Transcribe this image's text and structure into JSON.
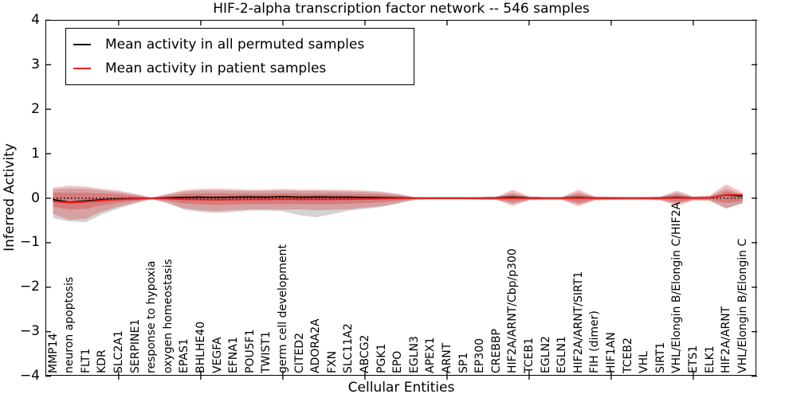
{
  "figure": {
    "title": "HIF-2-alpha transcription factor network -- 546 samples"
  },
  "legend": {
    "items": [
      {
        "label": "Mean activity in all permuted samples",
        "color": "#000000"
      },
      {
        "label": "Mean activity in patient samples",
        "color": "#e82020"
      }
    ]
  },
  "axes": {
    "xlabel": "Cellular Entities",
    "ylabel": "Inferred Activity",
    "ytick_labels": [
      "4",
      "3",
      "2",
      "1",
      "0",
      "−1",
      "−2",
      "−3",
      "−4"
    ]
  },
  "chart_data": {
    "type": "line",
    "title": "HIF-2-alpha transcription factor network -- 546 samples",
    "xlabel": "Cellular Entities",
    "ylabel": "Inferred Activity",
    "ylim": [
      -4,
      4
    ],
    "yticks": [
      4,
      3,
      2,
      1,
      0,
      -1,
      -2,
      -3,
      -4
    ],
    "grid": false,
    "legend_position": "upper left",
    "categories": [
      "MMP14",
      "neuron apoptosis",
      "FLT1",
      "KDR",
      "SLC2A1",
      "SERPINE1",
      "response to hypoxia",
      "oxygen homeostasis",
      "EPAS1",
      "BHLHE40",
      "VEGFA",
      "EFNA1",
      "POU5F1",
      "TWIST1",
      "germ cell development",
      "CITED2",
      "ADORA2A",
      "FXN",
      "SLC11A2",
      "ABCG2",
      "PGK1",
      "EPO",
      "EGLN3",
      "APEX1",
      "ARNT",
      "SP1",
      "EP300",
      "CREBBP",
      "HIF2A/ARNT/Cbp/p300",
      "TCEB1",
      "EGLN2",
      "EGLN1",
      "HIF2A/ARNT/SIRT1",
      "FIH (dimer)",
      "HIF1AN",
      "TCEB2",
      "VHL",
      "SIRT1",
      "VHL/Elongin B/Elongin C/HIF2A",
      "ETS1",
      "ELK1",
      "HIF2A/ARNT",
      "VHL/Elongin B/Elongin C"
    ],
    "x_major_tick_indices": [
      4,
      9,
      14,
      19,
      24,
      29,
      34,
      39
    ],
    "zero_line": {
      "y": 0,
      "style": "dotted",
      "color": "#000000"
    },
    "series": [
      {
        "name": "Mean activity in all permuted samples",
        "color": "#000000",
        "width": 1.6,
        "values": [
          -0.03,
          -0.09,
          -0.06,
          -0.03,
          -0.015,
          -0.005,
          0,
          0.01,
          0.02,
          0.025,
          0.02,
          0.025,
          0.03,
          0.025,
          0.035,
          0.025,
          0.03,
          0.025,
          0.025,
          0.02,
          0.015,
          0.01,
          0.005,
          0.005,
          0.005,
          0.005,
          0.005,
          0.01,
          0.025,
          0.01,
          0.005,
          0.005,
          0.02,
          0.005,
          0.005,
          0.005,
          0.005,
          0.005,
          0.02,
          0.005,
          0.01,
          0.07,
          0.045
        ]
      },
      {
        "name": "Mean activity in patient samples",
        "color": "#e82020",
        "width": 2,
        "values": [
          -0.07,
          -0.1,
          -0.08,
          -0.05,
          -0.03,
          -0.015,
          -0.005,
          -0.01,
          -0.025,
          -0.03,
          -0.035,
          -0.03,
          -0.025,
          -0.025,
          -0.02,
          -0.025,
          -0.025,
          -0.025,
          -0.02,
          -0.015,
          -0.01,
          -0.005,
          0,
          0,
          0,
          0,
          0,
          0,
          0.005,
          0,
          0,
          0,
          0.005,
          0,
          0,
          0,
          0,
          0,
          0.005,
          0.005,
          0.01,
          0.075,
          0.075
        ]
      }
    ],
    "bands": [
      {
        "name": "permuted-samples-std-band",
        "color": "rgba(130,130,130,0.35)",
        "upper": [
          0.2,
          0.22,
          0.21,
          0.17,
          0.13,
          0.08,
          0.012,
          0.08,
          0.15,
          0.17,
          0.17,
          0.165,
          0.16,
          0.16,
          0.17,
          0.16,
          0.16,
          0.155,
          0.15,
          0.14,
          0.12,
          0.08,
          0.025,
          0.02,
          0.02,
          0.02,
          0.022,
          0.025,
          0.12,
          0.03,
          0.022,
          0.022,
          0.13,
          0.03,
          0.025,
          0.022,
          0.022,
          0.03,
          0.12,
          0.03,
          0.045,
          0.22,
          0.09
        ],
        "lower": [
          -0.45,
          -0.52,
          -0.54,
          -0.36,
          -0.23,
          -0.12,
          -0.02,
          -0.12,
          -0.26,
          -0.31,
          -0.33,
          -0.31,
          -0.28,
          -0.28,
          -0.29,
          -0.38,
          -0.43,
          -0.36,
          -0.28,
          -0.24,
          -0.2,
          -0.12,
          -0.035,
          -0.025,
          -0.025,
          -0.025,
          -0.03,
          -0.035,
          -0.13,
          -0.04,
          -0.03,
          -0.03,
          -0.14,
          -0.04,
          -0.035,
          -0.03,
          -0.03,
          -0.04,
          -0.13,
          -0.04,
          -0.05,
          -0.24,
          -0.1
        ]
      },
      {
        "name": "patient-samples-outer-band",
        "color": "rgba(217,48,48,0.30)",
        "upper": [
          0.24,
          0.28,
          0.26,
          0.21,
          0.17,
          0.1,
          0.015,
          0.1,
          0.185,
          0.21,
          0.215,
          0.205,
          0.19,
          0.195,
          0.21,
          0.19,
          0.195,
          0.19,
          0.185,
          0.17,
          0.15,
          0.1,
          0.03,
          0.025,
          0.025,
          0.025,
          0.03,
          0.035,
          0.19,
          0.04,
          0.03,
          0.03,
          0.19,
          0.04,
          0.035,
          0.03,
          0.03,
          0.04,
          0.17,
          0.04,
          0.06,
          0.31,
          0.13
        ],
        "lower": [
          -0.35,
          -0.49,
          -0.46,
          -0.3,
          -0.19,
          -0.1,
          -0.02,
          -0.1,
          -0.23,
          -0.27,
          -0.29,
          -0.27,
          -0.25,
          -0.25,
          -0.26,
          -0.25,
          -0.27,
          -0.26,
          -0.25,
          -0.21,
          -0.18,
          -0.11,
          -0.04,
          -0.03,
          -0.03,
          -0.03,
          -0.035,
          -0.04,
          -0.17,
          -0.045,
          -0.04,
          -0.04,
          -0.185,
          -0.05,
          -0.04,
          -0.04,
          -0.04,
          -0.05,
          -0.175,
          -0.05,
          -0.06,
          -0.22,
          -0.12
        ]
      },
      {
        "name": "patient-samples-inner-band",
        "color": "rgba(217,48,48,0.32)",
        "upper": [
          0.13,
          0.12,
          0.12,
          0.11,
          0.09,
          0.05,
          0.01,
          0.05,
          0.1,
          0.11,
          0.11,
          0.105,
          0.1,
          0.1,
          0.11,
          0.1,
          0.1,
          0.1,
          0.095,
          0.09,
          0.08,
          0.05,
          0.015,
          0.012,
          0.012,
          0.012,
          0.015,
          0.02,
          0.095,
          0.02,
          0.015,
          0.015,
          0.095,
          0.02,
          0.015,
          0.015,
          0.015,
          0.02,
          0.085,
          0.02,
          0.03,
          0.155,
          0.07
        ],
        "lower": [
          -0.19,
          -0.26,
          -0.24,
          -0.16,
          -0.1,
          -0.06,
          -0.012,
          -0.055,
          -0.12,
          -0.14,
          -0.15,
          -0.14,
          -0.13,
          -0.13,
          -0.135,
          -0.13,
          -0.14,
          -0.135,
          -0.125,
          -0.11,
          -0.09,
          -0.055,
          -0.02,
          -0.015,
          -0.015,
          -0.015,
          -0.018,
          -0.022,
          -0.085,
          -0.025,
          -0.018,
          -0.018,
          -0.1,
          -0.027,
          -0.02,
          -0.018,
          -0.018,
          -0.025,
          -0.085,
          -0.025,
          -0.032,
          -0.11,
          -0.065
        ]
      }
    ]
  }
}
